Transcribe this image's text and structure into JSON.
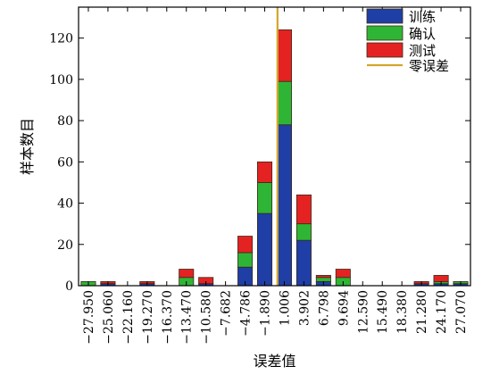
{
  "chart_data": {
    "type": "bar",
    "stacked": true,
    "xlabel": "误差值",
    "ylabel": "样本数目",
    "ylim": [
      0,
      135
    ],
    "yticks": [
      0,
      20,
      40,
      60,
      80,
      100,
      120
    ],
    "categories": [
      "-27.950",
      "-25.060",
      "-22.160",
      "-19.270",
      "-16.370",
      "-13.470",
      "-10.580",
      "-7.682",
      "-4.786",
      "-1.890",
      "1.006",
      "3.902",
      "6.798",
      "9.694",
      "12.590",
      "15.490",
      "18.380",
      "21.280",
      "24.170",
      "27.070"
    ],
    "category_labels": [
      "−27.950",
      "−25.060",
      "−22.160",
      "−19.270",
      "−16.370",
      "−13.470",
      "−10.580",
      "−7.682",
      "−4.786",
      "−1.890",
      "1.006",
      "3.902",
      "6.798",
      "9.694",
      "12.590",
      "15.490",
      "18.380",
      "21.280",
      "24.170",
      "27.070"
    ],
    "series": [
      {
        "name": "训练",
        "color": "#1f3fa6",
        "values": [
          0,
          1,
          0,
          1,
          0,
          0,
          1,
          0,
          9,
          35,
          78,
          22,
          2,
          0,
          0,
          0,
          0,
          1,
          1,
          1
        ]
      },
      {
        "name": "确认",
        "color": "#2fb535",
        "values": [
          2,
          0,
          0,
          0,
          0,
          4,
          0,
          0,
          7,
          15,
          21,
          8,
          2,
          4,
          0,
          0,
          0,
          0,
          1,
          1
        ]
      },
      {
        "name": "测试",
        "color": "#e52222",
        "values": [
          0,
          1,
          0,
          1,
          0,
          4,
          3,
          0,
          8,
          10,
          25,
          14,
          1,
          4,
          0,
          0,
          0,
          1,
          3,
          0
        ]
      }
    ],
    "reference_line": {
      "name": "零误差",
      "x": 0,
      "color": "#d4a52a"
    },
    "legend": {
      "position": "top-right"
    },
    "grid": false
  }
}
